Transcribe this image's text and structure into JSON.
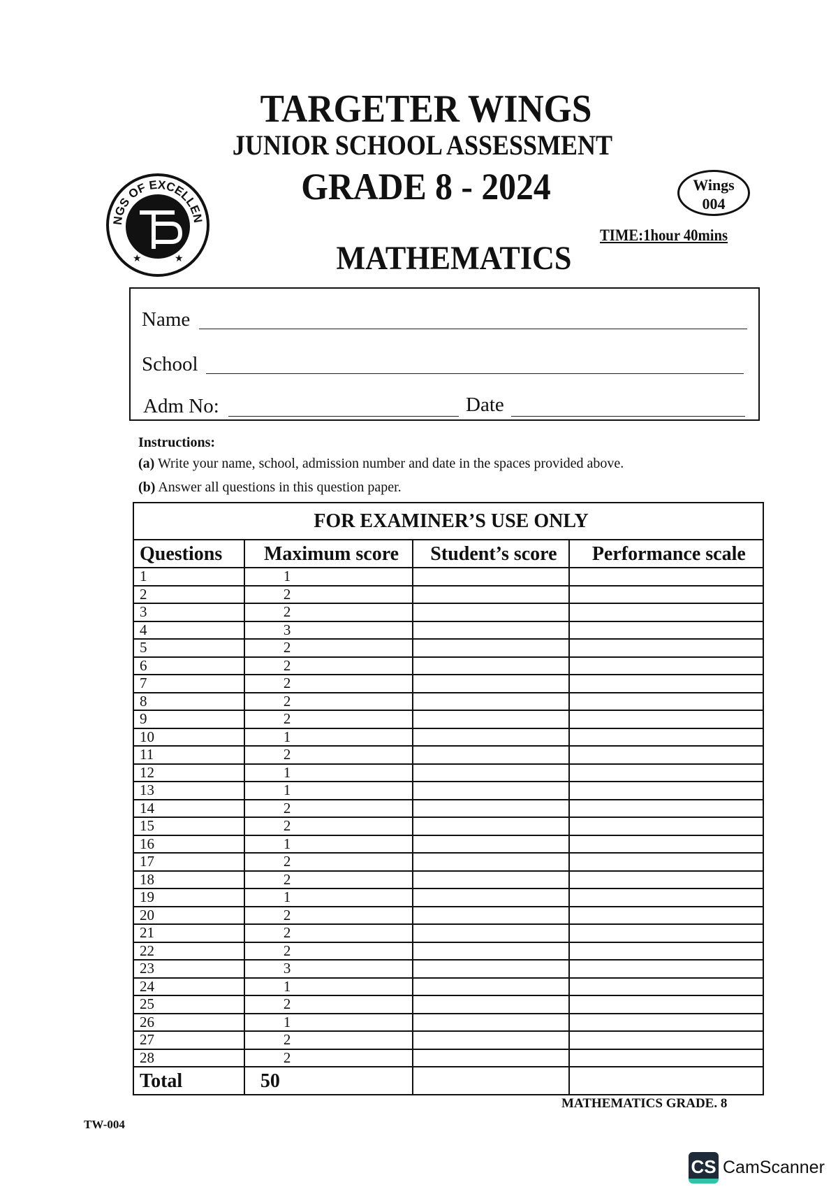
{
  "header": {
    "org": "TARGETER WINGS",
    "exam": "JUNIOR SCHOOL ASSESSMENT",
    "grade": "GRADE 8 - 2024",
    "subject": "MATHEMATICS",
    "badge_line1": "Wings",
    "badge_line2": "004",
    "time": "TIME:1hour 40mins",
    "logo_text": "WINGS OF EXCELLENCE"
  },
  "form": {
    "name_label": "Name",
    "school_label": "School",
    "adm_label": "Adm No:",
    "date_label": "Date"
  },
  "instructions": {
    "title": "Instructions:",
    "a_marker": "(a)",
    "a_text": " Write your name, school, admission number and date in the spaces provided above.",
    "b_marker": "(b)",
    "b_text": " Answer all questions in this question paper."
  },
  "table": {
    "title": "FOR EXAMINER’S USE ONLY",
    "columns": [
      "Questions",
      "Maximum score",
      "Student’s score",
      "Performance scale"
    ],
    "rows": [
      [
        "1",
        "1"
      ],
      [
        "2",
        "2"
      ],
      [
        "3",
        "2"
      ],
      [
        "4",
        "3"
      ],
      [
        "5",
        "2"
      ],
      [
        "6",
        "2"
      ],
      [
        "7",
        "2"
      ],
      [
        "8",
        "2"
      ],
      [
        "9",
        "2"
      ],
      [
        "10",
        "1"
      ],
      [
        "11",
        "2"
      ],
      [
        "12",
        "1"
      ],
      [
        "13",
        "1"
      ],
      [
        "14",
        "2"
      ],
      [
        "15",
        "2"
      ],
      [
        "16",
        "1"
      ],
      [
        "17",
        "2"
      ],
      [
        "18",
        "2"
      ],
      [
        "19",
        "1"
      ],
      [
        "20",
        "2"
      ],
      [
        "21",
        "2"
      ],
      [
        "22",
        "2"
      ],
      [
        "23",
        "3"
      ],
      [
        "24",
        "1"
      ],
      [
        "25",
        "2"
      ],
      [
        "26",
        "1"
      ],
      [
        "27",
        "2"
      ],
      [
        "28",
        "2"
      ]
    ],
    "total_label": "Total",
    "total_value": "50"
  },
  "footer": {
    "subject_grade": "MATHEMATICS GRADE. 8",
    "code": "TW-004",
    "scanner_logo": "CS",
    "scanner_name": "CamScanner"
  }
}
